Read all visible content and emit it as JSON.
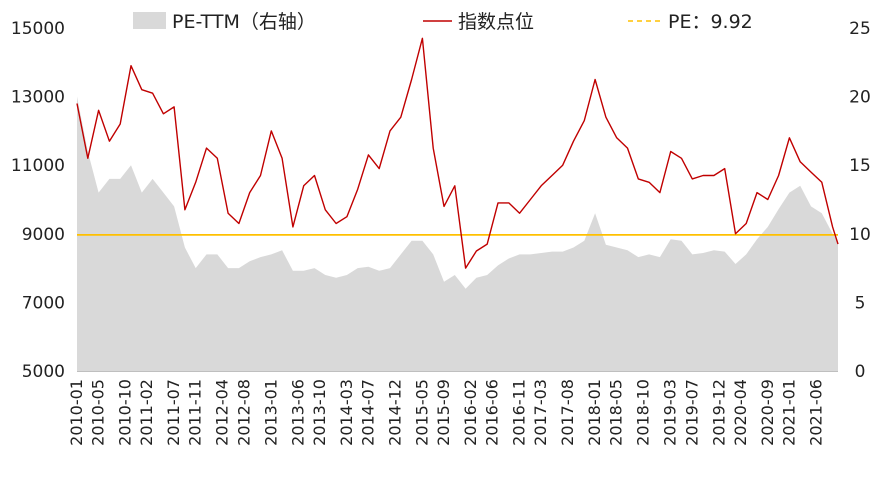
{
  "chart_data": {
    "type": "line",
    "legend": {
      "position": "top",
      "items": [
        {
          "label": "PE-TTM（右轴）",
          "kind": "area",
          "color": "#d9d9d9"
        },
        {
          "label": "指数点位",
          "kind": "line",
          "color": "#c00000"
        },
        {
          "label": "PE：9.92",
          "kind": "dashed-line",
          "color": "#ffc000"
        }
      ]
    },
    "left_axis": {
      "min": 5000,
      "max": 15000,
      "ticks": [
        5000,
        7000,
        9000,
        11000,
        13000,
        15000
      ]
    },
    "right_axis": {
      "min": 0,
      "max": 25,
      "ticks": [
        0,
        5,
        10,
        15,
        20,
        25
      ]
    },
    "x_start": "2010-01",
    "x_end": "2021-10",
    "x_tick_labels": [
      "2010-01",
      "2010-05",
      "2010-10",
      "2011-02",
      "2011-07",
      "2011-11",
      "2012-04",
      "2012-08",
      "2013-01",
      "2013-06",
      "2013-10",
      "2014-03",
      "2014-07",
      "2014-12",
      "2015-05",
      "2015-09",
      "2016-02",
      "2016-06",
      "2016-11",
      "2017-03",
      "2017-08",
      "2018-01",
      "2018-05",
      "2018-10",
      "2019-03",
      "2019-07",
      "2019-12",
      "2020-04",
      "2020-09",
      "2021-01",
      "2021-06"
    ],
    "grid": false,
    "series": [
      {
        "name": "指数点位",
        "axis": "left",
        "color": "#c00000",
        "x": [
          "2010-01",
          "2010-03",
          "2010-05",
          "2010-07",
          "2010-09",
          "2010-11",
          "2011-01",
          "2011-03",
          "2011-05",
          "2011-07",
          "2011-09",
          "2011-11",
          "2012-01",
          "2012-03",
          "2012-05",
          "2012-07",
          "2012-09",
          "2012-11",
          "2013-01",
          "2013-03",
          "2013-05",
          "2013-07",
          "2013-09",
          "2013-11",
          "2014-01",
          "2014-03",
          "2014-05",
          "2014-07",
          "2014-09",
          "2014-11",
          "2015-01",
          "2015-03",
          "2015-05",
          "2015-07",
          "2015-09",
          "2015-11",
          "2016-01",
          "2016-03",
          "2016-05",
          "2016-07",
          "2016-09",
          "2016-11",
          "2017-01",
          "2017-03",
          "2017-05",
          "2017-07",
          "2017-09",
          "2017-11",
          "2018-01",
          "2018-03",
          "2018-05",
          "2018-07",
          "2018-09",
          "2018-11",
          "2019-01",
          "2019-03",
          "2019-05",
          "2019-07",
          "2019-09",
          "2019-11",
          "2020-01",
          "2020-03",
          "2020-05",
          "2020-07",
          "2020-09",
          "2020-11",
          "2021-01",
          "2021-03",
          "2021-05",
          "2021-07",
          "2021-09",
          "2021-10"
        ],
        "values": [
          12800,
          11200,
          12600,
          11700,
          12200,
          13900,
          13200,
          13100,
          12500,
          12700,
          9700,
          10500,
          11500,
          11200,
          9600,
          9300,
          10200,
          10700,
          12000,
          11200,
          9200,
          10400,
          10700,
          9700,
          9300,
          9500,
          10300,
          11300,
          10900,
          12000,
          12400,
          13500,
          14700,
          11500,
          9800,
          10400,
          8000,
          8500,
          8700,
          9900,
          9900,
          9600,
          10000,
          10400,
          10700,
          11000,
          11700,
          12300,
          13500,
          12400,
          11800,
          11500,
          10600,
          10500,
          10200,
          11400,
          11200,
          10600,
          10700,
          10700,
          10900,
          9000,
          9300,
          10200,
          10000,
          10700,
          11800,
          11100,
          10800,
          10500,
          9200,
          8700
        ]
      },
      {
        "name": "PE-TTM（右轴）",
        "axis": "right",
        "color": "#d9d9d9",
        "x": [
          "2010-01",
          "2010-03",
          "2010-05",
          "2010-07",
          "2010-09",
          "2010-11",
          "2011-01",
          "2011-03",
          "2011-05",
          "2011-07",
          "2011-09",
          "2011-11",
          "2012-01",
          "2012-03",
          "2012-05",
          "2012-07",
          "2012-09",
          "2012-11",
          "2013-01",
          "2013-03",
          "2013-05",
          "2013-07",
          "2013-09",
          "2013-11",
          "2014-01",
          "2014-03",
          "2014-05",
          "2014-07",
          "2014-09",
          "2014-11",
          "2015-01",
          "2015-03",
          "2015-05",
          "2015-07",
          "2015-09",
          "2015-11",
          "2016-01",
          "2016-03",
          "2016-05",
          "2016-07",
          "2016-09",
          "2016-11",
          "2017-01",
          "2017-03",
          "2017-05",
          "2017-07",
          "2017-09",
          "2017-11",
          "2018-01",
          "2018-03",
          "2018-05",
          "2018-07",
          "2018-09",
          "2018-11",
          "2019-01",
          "2019-03",
          "2019-05",
          "2019-07",
          "2019-09",
          "2019-11",
          "2020-01",
          "2020-03",
          "2020-05",
          "2020-07",
          "2020-09",
          "2020-11",
          "2021-01",
          "2021-03",
          "2021-05",
          "2021-07",
          "2021-09",
          "2021-10"
        ],
        "values": [
          20,
          16,
          13,
          14,
          14,
          15,
          13,
          14,
          13,
          12,
          9,
          7.5,
          8.5,
          8.5,
          7.5,
          7.5,
          8,
          8.3,
          8.5,
          8.8,
          7.3,
          7.3,
          7.5,
          7,
          6.8,
          7,
          7.5,
          7.6,
          7.3,
          7.5,
          8.5,
          9.5,
          9.5,
          8.5,
          6.5,
          7,
          6,
          6.8,
          7,
          7.7,
          8.2,
          8.5,
          8.5,
          8.6,
          8.7,
          8.7,
          9,
          9.5,
          11.5,
          9.2,
          9,
          8.8,
          8.3,
          8.5,
          8.3,
          9.6,
          9.5,
          8.5,
          8.6,
          8.8,
          8.7,
          7.8,
          8.5,
          9.6,
          10.5,
          11.8,
          13,
          13.5,
          12,
          11.5,
          10,
          9.5
        ]
      }
    ],
    "reference_lines": [
      {
        "label": "PE：9.92",
        "axis": "right",
        "value": 9.92,
        "color": "#ffc000"
      }
    ]
  }
}
